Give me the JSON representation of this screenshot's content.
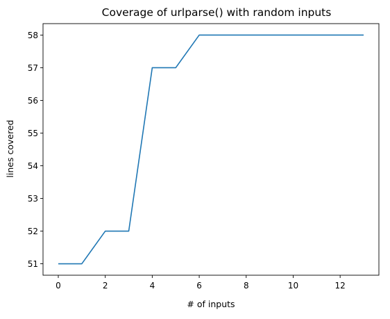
{
  "chart_data": {
    "type": "line",
    "title": "Coverage of urlparse() with random inputs",
    "xlabel": "# of inputs",
    "ylabel": "lines covered",
    "xlim": [
      -0.65,
      13.65
    ],
    "ylim": [
      50.65,
      58.35
    ],
    "x_ticks": [
      0,
      2,
      4,
      6,
      8,
      10,
      12
    ],
    "y_ticks": [
      51,
      52,
      53,
      54,
      55,
      56,
      57,
      58
    ],
    "grid": false,
    "legend": "none",
    "series": [
      {
        "x": [
          0,
          1,
          2,
          3,
          4,
          5,
          6,
          7,
          8,
          9,
          10,
          11,
          12,
          13
        ],
        "y": [
          51,
          51,
          52,
          52,
          57,
          57,
          58,
          58,
          58,
          58,
          58,
          58,
          58,
          58
        ],
        "color": "#1f77b4"
      }
    ]
  }
}
